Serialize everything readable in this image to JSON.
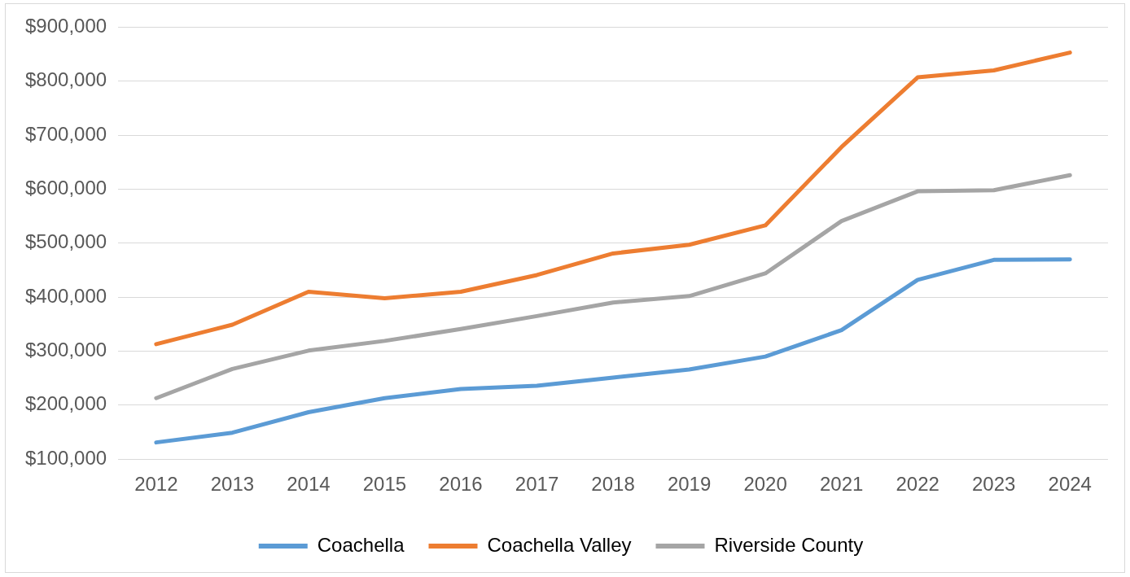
{
  "chart_data": {
    "type": "line",
    "categories": [
      "2012",
      "2013",
      "2014",
      "2015",
      "2016",
      "2017",
      "2018",
      "2019",
      "2020",
      "2021",
      "2022",
      "2023",
      "2024"
    ],
    "series": [
      {
        "name": "Coachella",
        "color": "#5b9bd5",
        "values": [
          131000,
          149000,
          187000,
          213000,
          230000,
          236000,
          251000,
          266000,
          290000,
          339000,
          432000,
          469000,
          470000
        ]
      },
      {
        "name": "Coachella Valley",
        "color": "#ed7d31",
        "values": [
          313000,
          349000,
          410000,
          398000,
          410000,
          441000,
          481000,
          497000,
          533000,
          678000,
          807000,
          820000,
          853000
        ]
      },
      {
        "name": "Riverside County",
        "color": "#a5a5a5",
        "values": [
          213000,
          267000,
          301000,
          319000,
          341000,
          365000,
          390000,
          402000,
          444000,
          541000,
          596000,
          598000,
          626000
        ]
      }
    ],
    "ylim": [
      100000,
      900000
    ],
    "yticks": [
      {
        "value": 100000,
        "label": "$100,000"
      },
      {
        "value": 200000,
        "label": "$200,000"
      },
      {
        "value": 300000,
        "label": "$300,000"
      },
      {
        "value": 400000,
        "label": "$400,000"
      },
      {
        "value": 500000,
        "label": "$500,000"
      },
      {
        "value": 600000,
        "label": "$600,000"
      },
      {
        "value": 700000,
        "label": "$700,000"
      },
      {
        "value": 800000,
        "label": "$800,000"
      },
      {
        "value": 900000,
        "label": "$900,000"
      }
    ],
    "grid": "y",
    "legend": "bottom",
    "marker": "none",
    "line_style": "solid"
  }
}
